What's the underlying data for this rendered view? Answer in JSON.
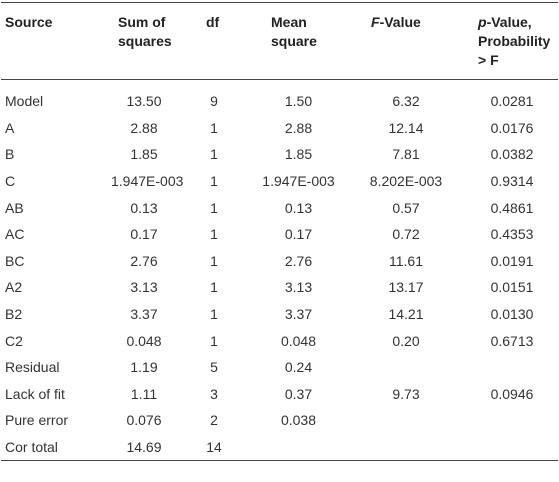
{
  "table": {
    "header": [
      "Source",
      "Sum of squares",
      "df",
      "Mean square",
      "F-Value",
      "p-Value, Probability > F"
    ],
    "rows": [
      [
        "Model",
        "13.50",
        "9",
        "1.50",
        "6.32",
        "0.0281"
      ],
      [
        "A",
        "2.88",
        "1",
        "2.88",
        "12.14",
        "0.0176"
      ],
      [
        "B",
        "1.85",
        "1",
        "1.85",
        "7.81",
        "0.0382"
      ],
      [
        "C",
        "1.947E-003",
        "1",
        "1.947E-003",
        "8.202E-003",
        "0.9314"
      ],
      [
        "AB",
        "0.13",
        "1",
        "0.13",
        "0.57",
        "0.4861"
      ],
      [
        "AC",
        "0.17",
        "1",
        "0.17",
        "0.72",
        "0.4353"
      ],
      [
        "BC",
        "2.76",
        "1",
        "2.76",
        "11.61",
        "0.0191"
      ],
      [
        "A2",
        "3.13",
        "1",
        "3.13",
        "13.17",
        "0.0151"
      ],
      [
        "B2",
        "3.37",
        "1",
        "3.37",
        "14.21",
        "0.0130"
      ],
      [
        "C2",
        "0.048",
        "1",
        "0.048",
        "0.20",
        "0.6713"
      ],
      [
        "Residual",
        "1.19",
        "5",
        "0.24",
        null,
        null
      ],
      [
        "Lack of fit",
        "1.11",
        "3",
        "0.37",
        "9.73",
        "0.0946"
      ],
      [
        "Pure error",
        "0.076",
        "2",
        "0.038",
        null,
        null
      ],
      [
        "Cor total",
        "14.69",
        "14",
        null,
        null,
        null
      ]
    ]
  }
}
